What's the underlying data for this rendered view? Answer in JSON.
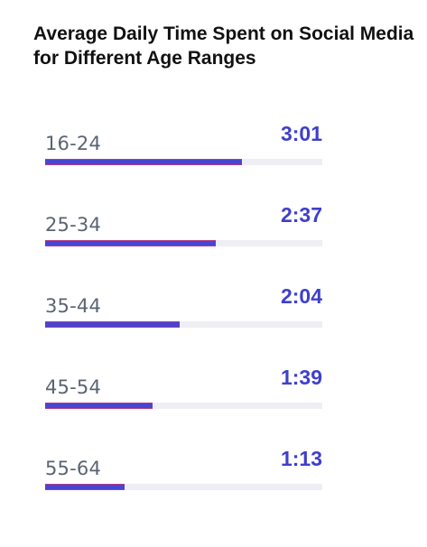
{
  "chart_data": {
    "type": "bar",
    "title": "Average Daily Time Spent on Social Media for Different Age Ranges",
    "categories": [
      "16-24",
      "25-34",
      "35-44",
      "45-54",
      "55-64"
    ],
    "labels": [
      "3:01",
      "2:37",
      "2:04",
      "1:39",
      "1:13"
    ],
    "values": [
      181,
      157,
      124,
      99,
      73
    ],
    "xlim": [
      0,
      255
    ],
    "grid": false,
    "bar_color": "#4646d2",
    "bar_accent": "#b23a8a",
    "track_color": "#eeeef4",
    "value_color": "#3f3fcc"
  }
}
